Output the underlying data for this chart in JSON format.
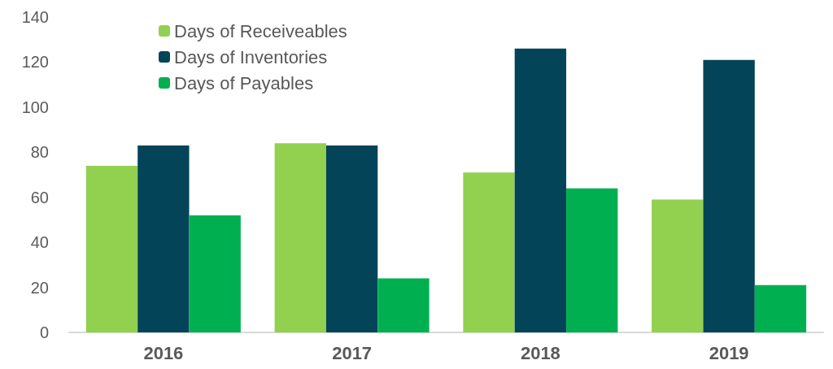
{
  "chart_data": {
    "type": "bar",
    "categories": [
      "2016",
      "2017",
      "2018",
      "2019"
    ],
    "series": [
      {
        "name": "Days of Receiveables",
        "color": "#92d050",
        "values": [
          74,
          84,
          71,
          59
        ]
      },
      {
        "name": "Days of Inventories",
        "color": "#034459",
        "values": [
          83,
          83,
          126,
          121
        ]
      },
      {
        "name": "Days of Payables",
        "color": "#00b050",
        "values": [
          52,
          24,
          64,
          21
        ]
      }
    ],
    "ylim": [
      0,
      140
    ],
    "yticks": [
      0,
      20,
      40,
      60,
      80,
      100,
      120,
      140
    ],
    "grid": false,
    "legend": "top left"
  }
}
